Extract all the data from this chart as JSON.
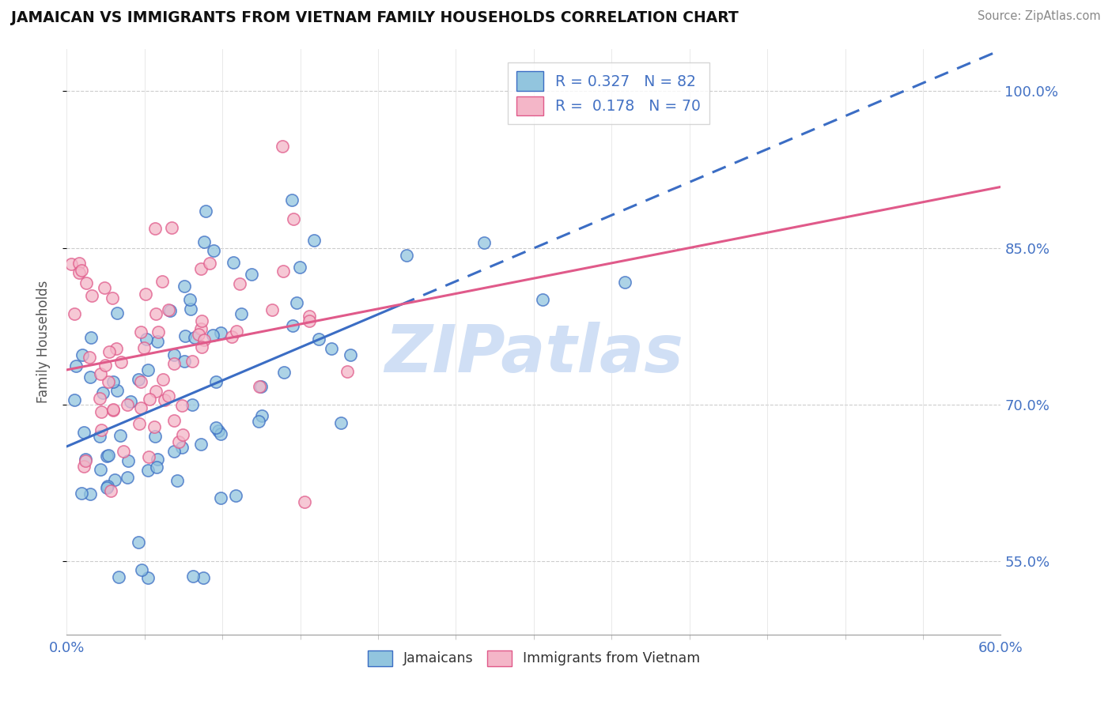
{
  "title": "JAMAICAN VS IMMIGRANTS FROM VIETNAM FAMILY HOUSEHOLDS CORRELATION CHART",
  "source": "Source: ZipAtlas.com",
  "ylabel": "Family Households",
  "xmin": 0.0,
  "xmax": 0.6,
  "ymin": 48.0,
  "ymax": 104.0,
  "y_tick_vals": [
    55.0,
    70.0,
    85.0,
    100.0
  ],
  "y_tick_labs": [
    "55.0%",
    "70.0%",
    "85.0%",
    "100.0%"
  ],
  "color_blue": "#92c5de",
  "color_pink": "#f4b6c8",
  "color_blue_dark": "#3b6dc4",
  "color_pink_dark": "#e05a8a",
  "watermark": "ZIPatlas",
  "background": "#ffffff",
  "watermark_color": "#d0dff5"
}
